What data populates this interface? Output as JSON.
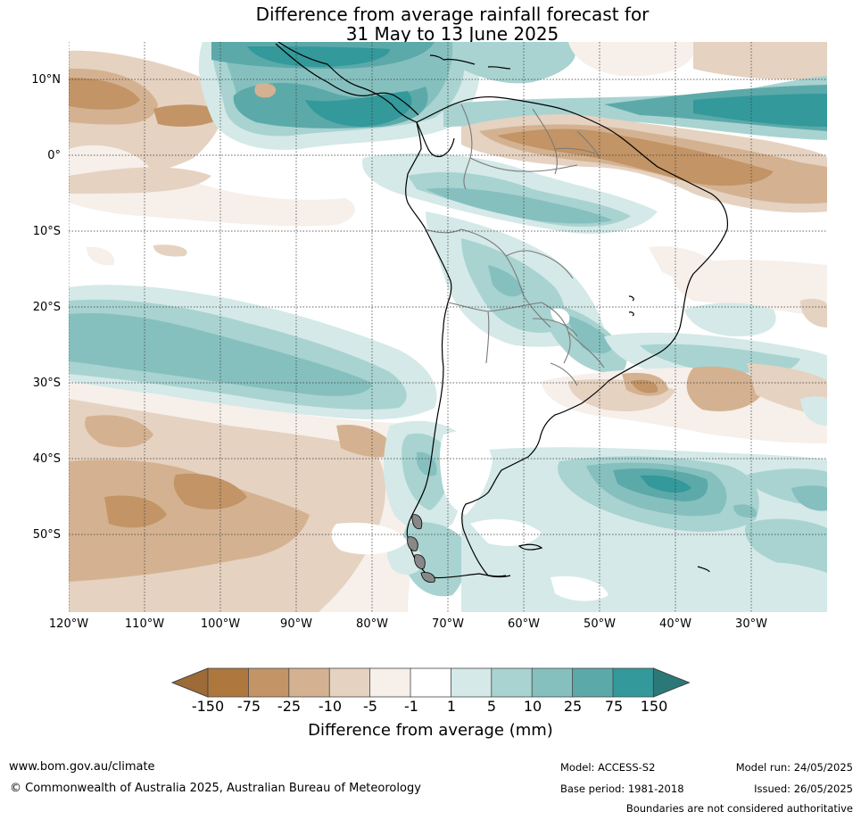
{
  "title": {
    "line1": "Difference from average rainfall forecast for",
    "line2": "31 May to 13 June 2025"
  },
  "map": {
    "lat_labels": [
      "10°N",
      "0°",
      "10°S",
      "20°S",
      "30°S",
      "40°S",
      "50°S"
    ],
    "lon_labels": [
      "120°W",
      "110°W",
      "100°W",
      "90°W",
      "80°W",
      "70°W",
      "60°W",
      "50°W",
      "40°W",
      "30°W"
    ],
    "gridlines": true
  },
  "legend": {
    "title": "Difference from average (mm)",
    "tick_labels": [
      "-150",
      "-75",
      "-25",
      "-10",
      "-5",
      "-1",
      "1",
      "5",
      "10",
      "25",
      "75",
      "150"
    ],
    "colors": [
      "#9d6b38",
      "#ad773e",
      "#c29466",
      "#d4b291",
      "#e5d2c1",
      "#f6efea",
      "#ffffff",
      "#d4e9e8",
      "#a8d3d1",
      "#85c0bf",
      "#5ca9a9",
      "#33999a",
      "#2b7878"
    ]
  },
  "footer": {
    "website": "www.bom.gov.au/climate",
    "copyright": "© Commonwealth of Australia 2025, Australian Bureau of Meteorology",
    "model": "Model: ACCESS-S2",
    "base_period": "Base period: 1981-2018",
    "model_run": "Model run: 24/05/2025",
    "issued": "Issued: 26/05/2025",
    "disclaimer": "Boundaries are not considered authoritative"
  }
}
